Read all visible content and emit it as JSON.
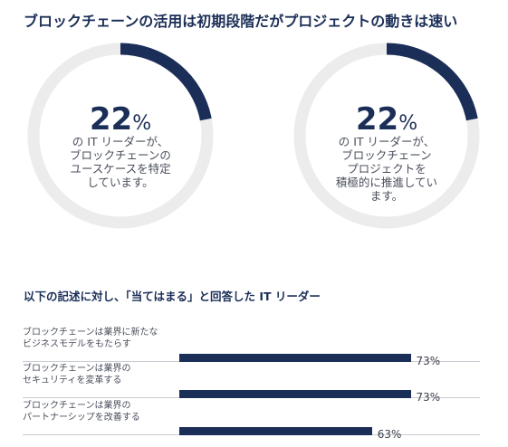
{
  "header": {
    "title": "ブロックチェーンの活用は初期段階だがプロジェクトの動きは速い"
  },
  "colors": {
    "accent": "#1b2e57",
    "track": "#ececec"
  },
  "donuts": [
    {
      "value_num": "22",
      "value_sign": "%",
      "lines": [
        "の IT リーダーが、",
        "ブロックチェーンの",
        "ユースケースを特定",
        "しています。"
      ]
    },
    {
      "value_num": "22",
      "value_sign": "%",
      "lines": [
        "の IT リーダーが、",
        "ブロックチェーン",
        "プロジェクトを",
        "積極的に推進してい",
        "ます。"
      ]
    }
  ],
  "bars_section": {
    "title": "以下の記述に対し、「当てはまる」と回答した IT リーダー"
  },
  "chart_data": [
    {
      "type": "pie",
      "labels": [
        "の IT リーダーが、ブロックチェーンのユースケースを特定しています。"
      ],
      "values": [
        22
      ]
    },
    {
      "type": "pie",
      "labels": [
        "の IT リーダーが、ブロックチェーンプロジェクトを積極的に推進しています。"
      ],
      "values": [
        22
      ]
    },
    {
      "type": "bar",
      "orientation": "horizontal",
      "categories": [
        [
          "ブロックチェーンは業界に新たな",
          "ビジネスモデルをもたらす"
        ],
        [
          "ブロックチェーンは業界の",
          "セキュリティを変革する"
        ],
        [
          "ブロックチェーンは業界の",
          "パートナーシップを改善する"
        ]
      ],
      "values": [
        73,
        73,
        63
      ],
      "value_labels": [
        "73%",
        "73%",
        "63%"
      ]
    }
  ]
}
